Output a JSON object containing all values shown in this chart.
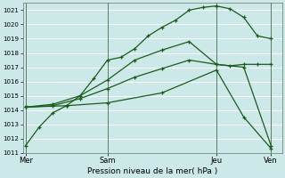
{
  "xlabel": "Pression niveau de la mer( hPa )",
  "background_color": "#cce8e8",
  "grid_color": "#b0d8d8",
  "line_color": "#1a5c1a",
  "ylim": [
    1011,
    1021.5
  ],
  "yticks": [
    1011,
    1012,
    1013,
    1014,
    1015,
    1016,
    1017,
    1018,
    1019,
    1020,
    1021
  ],
  "xtick_labels": [
    "Mer",
    "Sam",
    "Jeu",
    "Ven"
  ],
  "xtick_positions": [
    0,
    3,
    7,
    9
  ],
  "vlines_x": [
    0,
    3,
    7,
    9
  ],
  "xlim": [
    -0.1,
    9.4
  ],
  "lines": [
    {
      "x": [
        0,
        0.5,
        1,
        1.5,
        2,
        2.5,
        3,
        3.5,
        4,
        4.5,
        5,
        5.5,
        6,
        6.5,
        7,
        7.5,
        8,
        8.5,
        9
      ],
      "y": [
        1011.5,
        1012.8,
        1013.8,
        1014.3,
        1015.0,
        1016.2,
        1017.5,
        1017.7,
        1018.3,
        1019.2,
        1019.8,
        1020.3,
        1021.0,
        1021.2,
        1021.3,
        1021.1,
        1020.5,
        1019.2,
        1019.0
      ]
    },
    {
      "x": [
        0,
        1,
        2,
        3,
        4,
        5,
        6,
        7,
        7.5,
        8,
        8.5,
        9
      ],
      "y": [
        1014.2,
        1014.4,
        1015.0,
        1016.1,
        1017.5,
        1018.2,
        1018.8,
        1017.2,
        1017.1,
        1017.2,
        1017.2,
        1017.2
      ]
    },
    {
      "x": [
        0,
        1,
        2,
        3,
        4,
        5,
        6,
        7,
        8,
        9
      ],
      "y": [
        1014.2,
        1014.3,
        1014.8,
        1015.5,
        1016.3,
        1016.9,
        1017.5,
        1017.2,
        1017.0,
        1011.5
      ]
    },
    {
      "x": [
        0,
        1.5,
        3,
        5,
        7,
        8,
        9
      ],
      "y": [
        1014.2,
        1014.3,
        1014.5,
        1015.2,
        1016.8,
        1013.5,
        1011.3
      ]
    }
  ],
  "figsize": [
    3.2,
    2.0
  ],
  "dpi": 100
}
